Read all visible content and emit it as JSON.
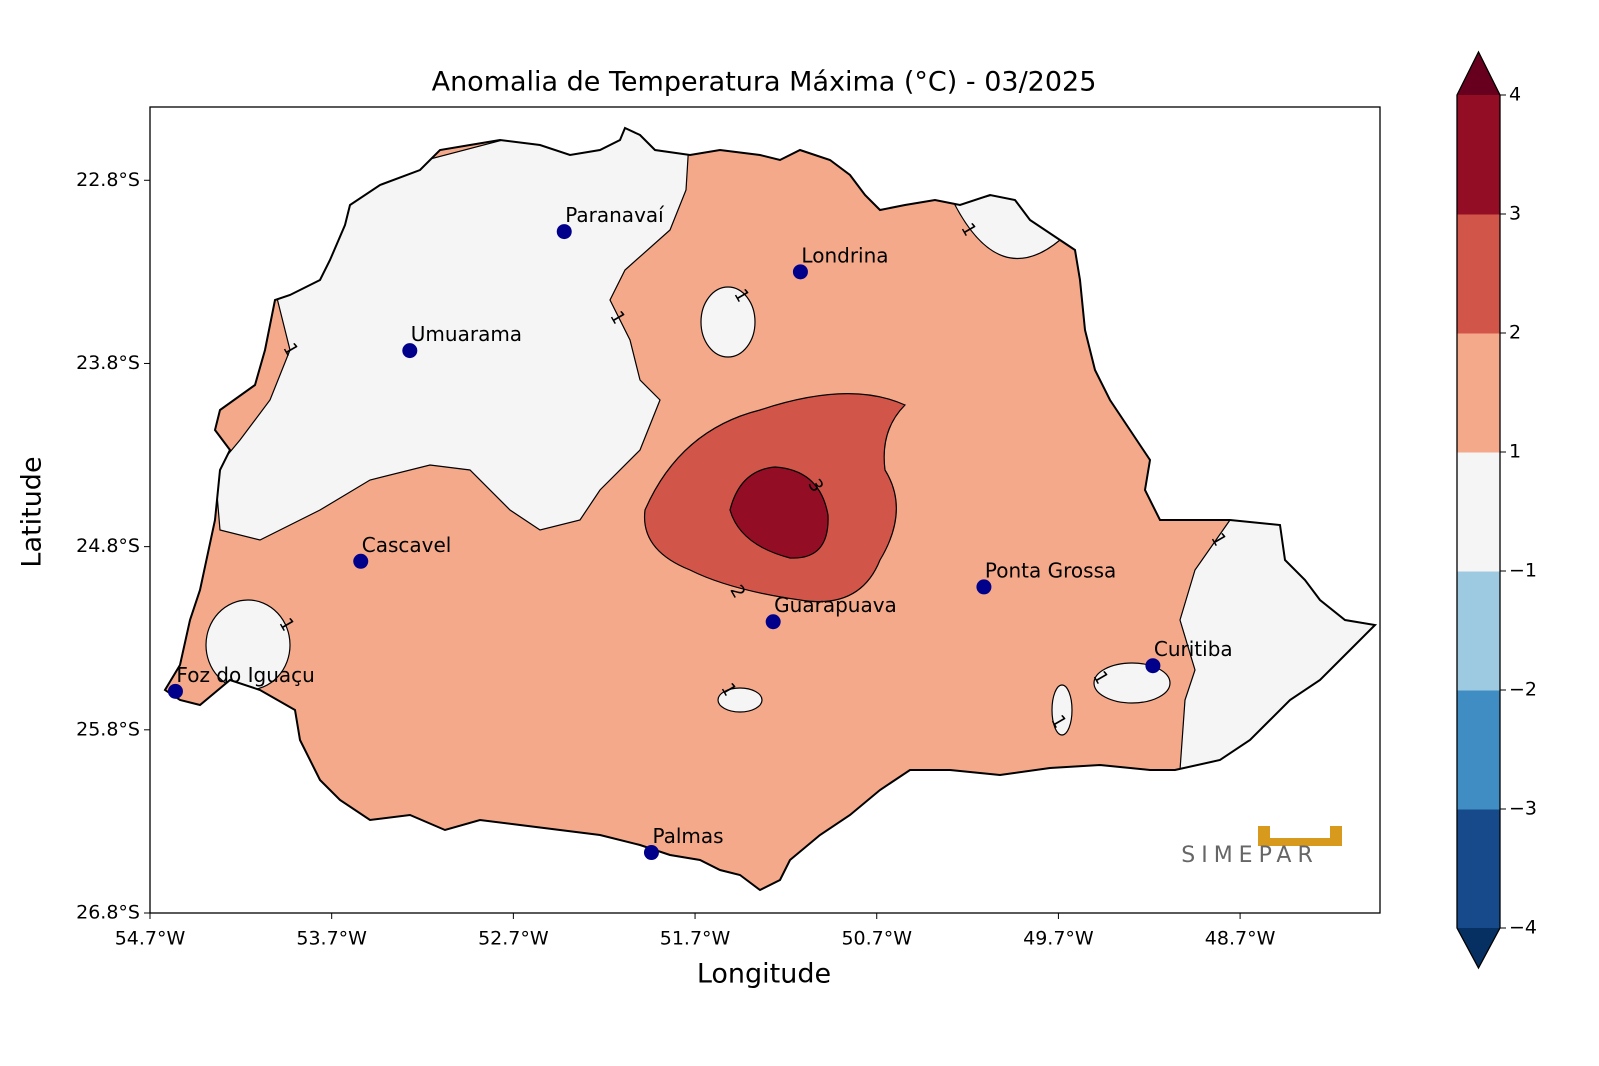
{
  "map": {
    "title": "Anomalia de Temperatura Máxima (°C) - 03/2025",
    "xlabel": "Longitude",
    "ylabel": "Latitude",
    "xlim": [
      -54.7,
      -47.93
    ],
    "ylim": [
      -26.8,
      -22.4
    ],
    "xticks": [
      {
        "value": -54.7,
        "label": "54.7°W"
      },
      {
        "value": -53.7,
        "label": "53.7°W"
      },
      {
        "value": -52.7,
        "label": "52.7°W"
      },
      {
        "value": -51.7,
        "label": "51.7°W"
      },
      {
        "value": -50.7,
        "label": "50.7°W"
      },
      {
        "value": -49.7,
        "label": "49.7°W"
      },
      {
        "value": -48.7,
        "label": "48.7°W"
      }
    ],
    "yticks": [
      {
        "value": -22.8,
        "label": "22.8°S"
      },
      {
        "value": -23.8,
        "label": "23.8°S"
      },
      {
        "value": -24.8,
        "label": "24.8°S"
      },
      {
        "value": -25.8,
        "label": "25.8°S"
      },
      {
        "value": -26.8,
        "label": "26.8°S"
      }
    ],
    "cities": [
      {
        "name": "Paranavaí",
        "lon": -52.42,
        "lat": -23.08
      },
      {
        "name": "Londrina",
        "lon": -51.12,
        "lat": -23.3
      },
      {
        "name": "Umuarama",
        "lon": -53.27,
        "lat": -23.73
      },
      {
        "name": "Cascavel",
        "lon": -53.54,
        "lat": -24.88
      },
      {
        "name": "Ponta Grossa",
        "lon": -50.11,
        "lat": -25.02
      },
      {
        "name": "Guarapuava",
        "lon": -51.27,
        "lat": -25.21
      },
      {
        "name": "Curitiba",
        "lon": -49.18,
        "lat": -25.45
      },
      {
        "name": "Foz do Iguaçu",
        "lon": -54.56,
        "lat": -25.59
      },
      {
        "name": "Palmas",
        "lon": -51.94,
        "lat": -26.47
      }
    ],
    "city_color": "#00008b",
    "contour_labels": [
      "1",
      "1",
      "1",
      "1",
      "1",
      "1",
      "1",
      "1",
      "1",
      "2",
      "3"
    ],
    "colorbar": {
      "ticks": [
        {
          "value": -4,
          "label": "−4"
        },
        {
          "value": -3,
          "label": "−3"
        },
        {
          "value": -2,
          "label": "−2"
        },
        {
          "value": -1,
          "label": "−1"
        },
        1,
        2,
        3,
        4
      ],
      "colors": [
        "#174a8a",
        "#3f8dc2",
        "#9ecae1",
        "#f5f5f5",
        "#f4a98a",
        "#d2554a",
        "#930e25"
      ],
      "under": "#053061",
      "over": "#67001f"
    },
    "logo": "SIMEPAR"
  }
}
